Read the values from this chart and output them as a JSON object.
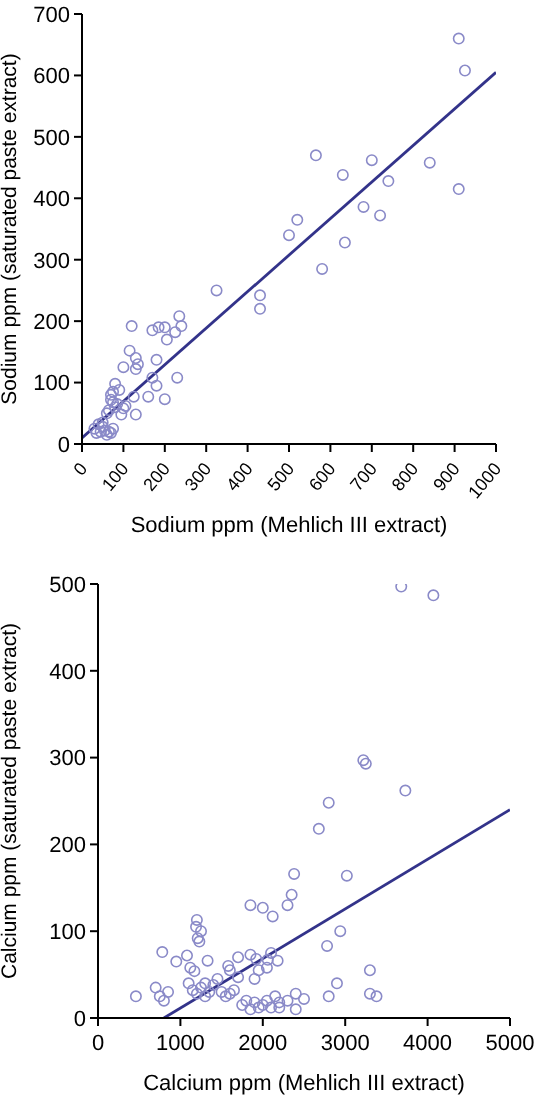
{
  "chart_data": [
    {
      "type": "scatter",
      "xlabel": "Sodium ppm (Mehlich III extract)",
      "ylabel": "Sodium ppm (saturated paste extract)",
      "xlim": [
        0,
        1000
      ],
      "xticks": [
        0,
        100,
        200,
        300,
        400,
        500,
        600,
        700,
        800,
        900,
        1000
      ],
      "ylim": [
        0,
        700
      ],
      "yticks": [
        0,
        100,
        200,
        300,
        400,
        500,
        600,
        700
      ],
      "series": [
        {
          "marker": "circle",
          "color": "#8a8ac8",
          "x": [
            910,
            925,
            565,
            700,
            630,
            840,
            910,
            740,
            680,
            720,
            520,
            500,
            635,
            580,
            325,
            430,
            430,
            235,
            240,
            200,
            185,
            170,
            120,
            225,
            205,
            115,
            130,
            135,
            130,
            100,
            180,
            170,
            230,
            180,
            160,
            200,
            125,
            130,
            100,
            95,
            80,
            90,
            75,
            70,
            70,
            75,
            85,
            80,
            65,
            60,
            105,
            50,
            40,
            30,
            35,
            45,
            55,
            65,
            70,
            60,
            50,
            75
          ],
          "values": [
            660,
            608,
            470,
            462,
            438,
            458,
            415,
            428,
            386,
            372,
            365,
            340,
            328,
            285,
            250,
            242,
            220,
            208,
            192,
            190,
            190,
            185,
            192,
            182,
            170,
            152,
            140,
            130,
            122,
            125,
            137,
            108,
            108,
            95,
            77,
            73,
            77,
            48,
            58,
            48,
            98,
            88,
            85,
            80,
            72,
            68,
            65,
            60,
            55,
            50,
            62,
            35,
            32,
            25,
            18,
            20,
            22,
            20,
            18,
            15,
            28,
            25
          ]
        },
        {
          "type": "line",
          "marker": "none",
          "color": "#33338a",
          "x": [
            0,
            1000
          ],
          "values": [
            10,
            605
          ]
        }
      ]
    },
    {
      "type": "scatter",
      "xlabel": "Calcium ppm (Mehlich III extract)",
      "ylabel": "Calcium ppm (saturated paste extract)",
      "xlim": [
        0,
        5000
      ],
      "xticks": [
        0,
        1000,
        2000,
        3000,
        4000,
        5000
      ],
      "ylim": [
        0,
        500
      ],
      "yticks": [
        0,
        100,
        200,
        300,
        400,
        500
      ],
      "series": [
        {
          "marker": "circle",
          "color": "#8a8ac8",
          "x": [
            3680,
            4070,
            3220,
            3250,
            3730,
            2800,
            2680,
            3020,
            2380,
            2350,
            2300,
            1850,
            2000,
            2120,
            1200,
            1190,
            1250,
            1210,
            1230,
            2940,
            2780,
            780,
            950,
            1080,
            1330,
            1120,
            1170,
            1700,
            1850,
            1920,
            2060,
            2180,
            2100,
            1600,
            1580,
            1450,
            1700,
            1950,
            1900,
            2050,
            1400,
            1300,
            1250,
            1350,
            1300,
            1200,
            1150,
            1500,
            1550,
            1600,
            700,
            750,
            850,
            800,
            460,
            1750,
            1800,
            1900,
            2000,
            2100,
            2200,
            2300,
            2400,
            2500,
            2400,
            2050,
            1950,
            2150,
            2900,
            2800,
            3300,
            3300,
            3380,
            2200,
            1850,
            1650,
            1100
          ],
          "values": [
            497,
            487,
            297,
            293,
            262,
            248,
            218,
            164,
            166,
            142,
            130,
            130,
            127,
            117,
            113,
            105,
            100,
            92,
            88,
            100,
            83,
            76,
            65,
            72,
            66,
            58,
            54,
            70,
            73,
            68,
            67,
            66,
            75,
            55,
            60,
            45,
            47,
            55,
            45,
            58,
            38,
            40,
            35,
            30,
            25,
            28,
            32,
            30,
            25,
            28,
            35,
            25,
            30,
            20,
            25,
            15,
            20,
            18,
            15,
            12,
            18,
            20,
            10,
            22,
            28,
            20,
            12,
            25,
            40,
            25,
            55,
            28,
            25,
            12,
            10,
            32,
            40
          ]
        },
        {
          "type": "line",
          "marker": "none",
          "color": "#33338a",
          "x": [
            800,
            5000
          ],
          "values": [
            0,
            240
          ]
        }
      ]
    }
  ]
}
